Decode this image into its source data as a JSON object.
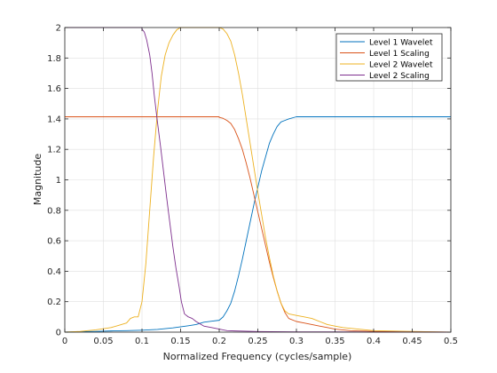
{
  "chart_data": {
    "type": "line",
    "title": "",
    "xlabel": "Normalized Frequency (cycles/sample)",
    "ylabel": "Magnitude",
    "xlim": [
      0,
      0.5
    ],
    "ylim": [
      0,
      2
    ],
    "grid": true,
    "legend_position": "top-right",
    "x_ticks": [
      "0",
      "0.05",
      "0.1",
      "0.15",
      "0.2",
      "0.25",
      "0.3",
      "0.35",
      "0.4",
      "0.45",
      "0.5"
    ],
    "y_ticks": [
      "0",
      "0.2",
      "0.4",
      "0.6",
      "0.8",
      "1",
      "1.2",
      "1.4",
      "1.6",
      "1.8",
      "2"
    ],
    "series": [
      {
        "name": "Level 1 Wavelet",
        "color": "#0072BD",
        "points": [
          [
            0,
            0
          ],
          [
            0.02,
            0.003
          ],
          [
            0.04,
            0.005
          ],
          [
            0.06,
            0.008
          ],
          [
            0.08,
            0.01
          ],
          [
            0.1,
            0.013
          ],
          [
            0.12,
            0.018
          ],
          [
            0.14,
            0.028
          ],
          [
            0.16,
            0.042
          ],
          [
            0.17,
            0.05
          ],
          [
            0.18,
            0.065
          ],
          [
            0.19,
            0.072
          ],
          [
            0.2,
            0.078
          ],
          [
            0.205,
            0.1
          ],
          [
            0.21,
            0.14
          ],
          [
            0.215,
            0.19
          ],
          [
            0.22,
            0.27
          ],
          [
            0.225,
            0.37
          ],
          [
            0.23,
            0.48
          ],
          [
            0.235,
            0.6
          ],
          [
            0.24,
            0.72
          ],
          [
            0.245,
            0.84
          ],
          [
            0.25,
            0.95
          ],
          [
            0.255,
            1.06
          ],
          [
            0.26,
            1.15
          ],
          [
            0.265,
            1.24
          ],
          [
            0.27,
            1.3
          ],
          [
            0.275,
            1.35
          ],
          [
            0.28,
            1.38
          ],
          [
            0.285,
            1.39
          ],
          [
            0.29,
            1.4
          ],
          [
            0.3,
            1.414
          ],
          [
            0.35,
            1.414
          ],
          [
            0.4,
            1.414
          ],
          [
            0.45,
            1.414
          ],
          [
            0.5,
            1.414
          ]
        ]
      },
      {
        "name": "Level 1 Scaling",
        "color": "#D95319",
        "points": [
          [
            0,
            1.414
          ],
          [
            0.05,
            1.414
          ],
          [
            0.1,
            1.414
          ],
          [
            0.15,
            1.414
          ],
          [
            0.2,
            1.414
          ],
          [
            0.2,
            1.41
          ],
          [
            0.205,
            1.404
          ],
          [
            0.21,
            1.39
          ],
          [
            0.215,
            1.37
          ],
          [
            0.22,
            1.33
          ],
          [
            0.225,
            1.27
          ],
          [
            0.23,
            1.2
          ],
          [
            0.235,
            1.11
          ],
          [
            0.24,
            1.01
          ],
          [
            0.245,
            0.9
          ],
          [
            0.25,
            0.79
          ],
          [
            0.255,
            0.68
          ],
          [
            0.26,
            0.57
          ],
          [
            0.265,
            0.46
          ],
          [
            0.27,
            0.36
          ],
          [
            0.275,
            0.27
          ],
          [
            0.28,
            0.19
          ],
          [
            0.285,
            0.13
          ],
          [
            0.29,
            0.09
          ],
          [
            0.3,
            0.07
          ],
          [
            0.31,
            0.06
          ],
          [
            0.32,
            0.05
          ],
          [
            0.33,
            0.04
          ],
          [
            0.34,
            0.03
          ],
          [
            0.35,
            0.02
          ],
          [
            0.37,
            0.01
          ],
          [
            0.4,
            0.005
          ],
          [
            0.45,
            0.002
          ],
          [
            0.5,
            0
          ]
        ]
      },
      {
        "name": "Level 2 Wavelet",
        "color": "#EDB120",
        "points": [
          [
            0,
            0
          ],
          [
            0.02,
            0.005
          ],
          [
            0.04,
            0.015
          ],
          [
            0.06,
            0.03
          ],
          [
            0.07,
            0.045
          ],
          [
            0.08,
            0.06
          ],
          [
            0.085,
            0.09
          ],
          [
            0.09,
            0.1
          ],
          [
            0.095,
            0.1
          ],
          [
            0.1,
            0.2
          ],
          [
            0.105,
            0.45
          ],
          [
            0.11,
            0.8
          ],
          [
            0.115,
            1.15
          ],
          [
            0.12,
            1.45
          ],
          [
            0.125,
            1.68
          ],
          [
            0.13,
            1.82
          ],
          [
            0.135,
            1.9
          ],
          [
            0.14,
            1.95
          ],
          [
            0.145,
            1.985
          ],
          [
            0.15,
            2.0
          ],
          [
            0.2,
            2.0
          ],
          [
            0.205,
            1.99
          ],
          [
            0.21,
            1.96
          ],
          [
            0.215,
            1.91
          ],
          [
            0.22,
            1.82
          ],
          [
            0.225,
            1.7
          ],
          [
            0.23,
            1.56
          ],
          [
            0.235,
            1.4
          ],
          [
            0.24,
            1.24
          ],
          [
            0.245,
            1.08
          ],
          [
            0.25,
            0.92
          ],
          [
            0.255,
            0.77
          ],
          [
            0.26,
            0.62
          ],
          [
            0.265,
            0.49
          ],
          [
            0.27,
            0.37
          ],
          [
            0.275,
            0.27
          ],
          [
            0.28,
            0.19
          ],
          [
            0.285,
            0.14
          ],
          [
            0.29,
            0.12
          ],
          [
            0.3,
            0.11
          ],
          [
            0.31,
            0.1
          ],
          [
            0.32,
            0.09
          ],
          [
            0.33,
            0.07
          ],
          [
            0.34,
            0.05
          ],
          [
            0.35,
            0.04
          ],
          [
            0.36,
            0.03
          ],
          [
            0.38,
            0.02
          ],
          [
            0.4,
            0.01
          ],
          [
            0.45,
            0.005
          ],
          [
            0.5,
            0
          ]
        ]
      },
      {
        "name": "Level 2 Scaling",
        "color": "#7E2F8E",
        "points": [
          [
            0,
            2.0
          ],
          [
            0.05,
            2.0
          ],
          [
            0.1,
            2.0
          ],
          [
            0.1,
            1.99
          ],
          [
            0.103,
            1.97
          ],
          [
            0.106,
            1.92
          ],
          [
            0.11,
            1.82
          ],
          [
            0.113,
            1.7
          ],
          [
            0.116,
            1.55
          ],
          [
            0.12,
            1.38
          ],
          [
            0.124,
            1.22
          ],
          [
            0.128,
            1.05
          ],
          [
            0.132,
            0.88
          ],
          [
            0.136,
            0.72
          ],
          [
            0.14,
            0.56
          ],
          [
            0.144,
            0.42
          ],
          [
            0.148,
            0.3
          ],
          [
            0.151,
            0.2
          ],
          [
            0.155,
            0.12
          ],
          [
            0.16,
            0.1
          ],
          [
            0.165,
            0.09
          ],
          [
            0.17,
            0.07
          ],
          [
            0.18,
            0.04
          ],
          [
            0.19,
            0.03
          ],
          [
            0.2,
            0.02
          ],
          [
            0.21,
            0.01
          ],
          [
            0.22,
            0.008
          ],
          [
            0.25,
            0.004
          ],
          [
            0.3,
            0.002
          ],
          [
            0.35,
            0.002
          ],
          [
            0.4,
            0.001
          ],
          [
            0.45,
            0.001
          ],
          [
            0.5,
            0
          ]
        ]
      }
    ]
  }
}
